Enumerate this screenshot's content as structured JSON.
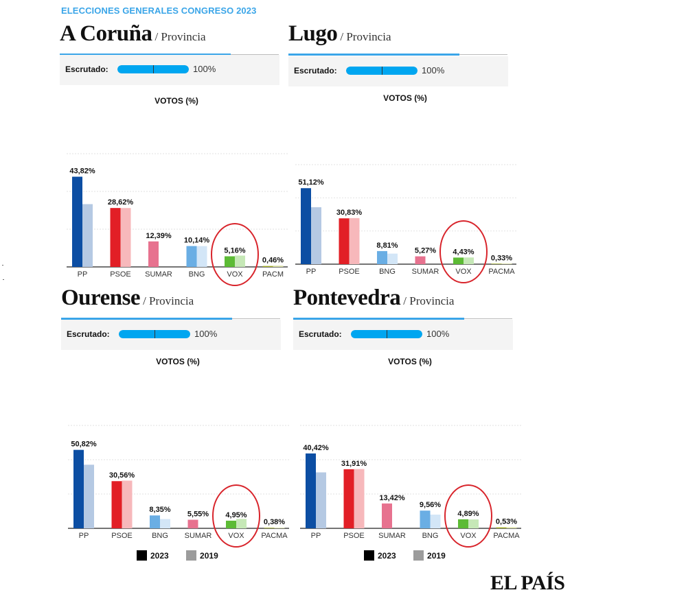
{
  "header": {
    "title": "ELECCIONES GENERALES CONGRESO 2023"
  },
  "escrutado_label": "Escrutado:",
  "votes_title": "VOTOS (%)",
  "colors": {
    "PP": [
      "#0c4ea3",
      "#b5c9e3"
    ],
    "PSOE": [
      "#e21f26",
      "#f7b8bb"
    ],
    "SUMAR": [
      "#e7728f",
      "#f6c8d3"
    ],
    "BNG": [
      "#6aaee4",
      "#d3e6f7"
    ],
    "VOX": [
      "#5cbb35",
      "#c6e8b7"
    ],
    "PACMA": [
      "#a8b42a",
      "#dde2a8"
    ],
    "gridline": "#e2e2e2",
    "annotation_circle": "#d8242b"
  },
  "legend": [
    {
      "label": "2023",
      "color": "#000000"
    },
    {
      "label": "2019",
      "color": "#9c9c9c"
    }
  ],
  "brand": {
    "logo_text": "EL PAÍS"
  },
  "chart_data": [
    {
      "type": "bar",
      "title": "A Coruña",
      "subtitle": "/ Provincia",
      "escrutado": "100%",
      "escrutado_fraction": 1.0,
      "categories": [
        "PP",
        "PSOE",
        "SUMAR",
        "BNG",
        "VOX",
        "PACM"
      ],
      "value_labels": [
        "43,82%",
        "28,62%",
        "12,39%",
        "10,14%",
        "5,16%",
        "0,46%"
      ],
      "series": [
        {
          "name": "2023",
          "values": [
            43.82,
            28.62,
            12.39,
            10.14,
            5.16,
            0.46
          ]
        },
        {
          "name": "2019",
          "values": [
            30.5,
            28.6,
            null,
            10.1,
            5.5,
            0.6
          ]
        }
      ],
      "ylim": [
        0,
        50
      ],
      "grid": true,
      "circled": "VOX"
    },
    {
      "type": "bar",
      "title": "Lugo",
      "subtitle": "/ Provincia",
      "escrutado": "100%",
      "escrutado_fraction": 1.0,
      "categories": [
        "PP",
        "PSOE",
        "BNG",
        "SUMAR",
        "VOX",
        "PACMA"
      ],
      "value_labels": [
        "51,12%",
        "30,83%",
        "8,81%",
        "5,27%",
        "4,43%",
        "0,33%"
      ],
      "series": [
        {
          "name": "2023",
          "values": [
            51.12,
            30.83,
            8.81,
            5.27,
            4.43,
            0.33
          ]
        },
        {
          "name": "2019",
          "values": [
            38.3,
            31.0,
            7.1,
            null,
            4.5,
            0.4
          ]
        }
      ],
      "ylim": [
        0,
        60
      ],
      "grid": true,
      "circled": "VOX"
    },
    {
      "type": "bar",
      "title": "Ourense",
      "subtitle": "/ Provincia",
      "escrutado": "100%",
      "escrutado_fraction": 1.0,
      "categories": [
        "PP",
        "PSOE",
        "BNG",
        "SUMAR",
        "VOX",
        "PACMA"
      ],
      "value_labels": [
        "50,82%",
        "30,56%",
        "8,35%",
        "5,55%",
        "4,95%",
        "0,38%"
      ],
      "series": [
        {
          "name": "2023",
          "values": [
            50.82,
            30.56,
            8.35,
            5.55,
            4.95,
            0.38
          ]
        },
        {
          "name": "2019",
          "values": [
            41.2,
            30.9,
            6.0,
            null,
            6.1,
            0.4
          ]
        }
      ],
      "ylim": [
        0,
        60
      ],
      "grid": true,
      "circled": "VOX"
    },
    {
      "type": "bar",
      "title": "Pontevedra",
      "subtitle": "/ Provincia",
      "escrutado": "100%",
      "escrutado_fraction": 1.0,
      "categories": [
        "PP",
        "PSOE",
        "SUMAR",
        "BNG",
        "VOX",
        "PACMA"
      ],
      "value_labels": [
        "40,42%",
        "31,91%",
        "13,42%",
        "9,56%",
        "4,89%",
        "0,53%"
      ],
      "series": [
        {
          "name": "2023",
          "values": [
            40.42,
            31.91,
            13.42,
            9.56,
            4.89,
            0.53
          ]
        },
        {
          "name": "2019",
          "values": [
            30.2,
            32.0,
            null,
            7.4,
            4.8,
            0.6
          ]
        }
      ],
      "ylim": [
        0,
        50
      ],
      "grid": true,
      "circled": "VOX"
    }
  ]
}
